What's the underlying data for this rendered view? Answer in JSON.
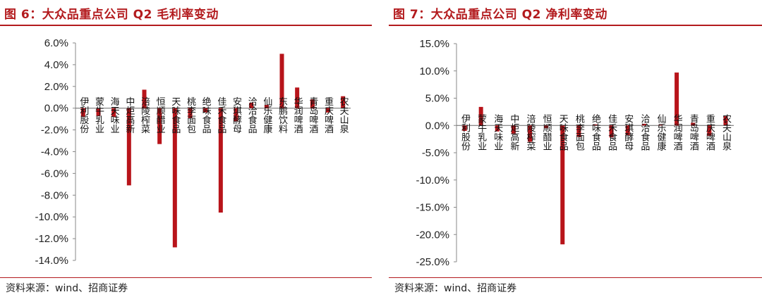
{
  "chart_data": [
    {
      "type": "bar",
      "title": "图 6：大众品重点公司 Q2 毛利率变动",
      "source": "资料来源：wind、招商证券",
      "categories": [
        "伊利股份",
        "蒙牛乳业",
        "海天味业",
        "中炬高新",
        "涪陵榨菜",
        "恒顺醋业",
        "天味食品",
        "桃李面包",
        "绝味食品",
        "佳禾食品",
        "安琪酵母",
        "洽洽食品",
        "仙乐健康",
        "东鹏饮料",
        "华润啤酒",
        "青岛啤酒",
        "重庆啤酒",
        "农夫山泉"
      ],
      "values": [
        -0.8,
        -0.7,
        -0.8,
        -7.1,
        1.7,
        -3.3,
        -12.8,
        -0.9,
        -0.4,
        -9.6,
        -1.2,
        0.5,
        0.3,
        5.0,
        1.9,
        0.8,
        -0.4,
        1.1
      ],
      "ylim": [
        -14,
        6
      ],
      "yticks": [
        6,
        4,
        2,
        0,
        -2,
        -4,
        -6,
        -8,
        -10,
        -12,
        -14
      ],
      "ytick_labels": [
        "6.0%",
        "4.0%",
        "2.0%",
        "0.0%",
        "-2.0%",
        "-4.0%",
        "-6.0%",
        "-8.0%",
        "-10.0%",
        "-12.0%",
        "-14.0%"
      ],
      "xlabel": "",
      "ylabel": "",
      "grid": false,
      "color": "#b8141a"
    },
    {
      "type": "bar",
      "title": "图 7：大众品重点公司 Q2 净利率变动",
      "source": "资料来源：wind、招商证券",
      "categories": [
        "伊利股份",
        "蒙牛乳业",
        "海天味业",
        "中炬高新",
        "涪陵榨菜",
        "恒顺醋业",
        "天味食品",
        "桃李面包",
        "绝味食品",
        "佳禾食品",
        "安琪酵母",
        "洽洽食品",
        "仙乐健康",
        "华润啤酒",
        "青岛啤酒",
        "重庆啤酒",
        "农夫山泉"
      ],
      "values": [
        -1.0,
        3.4,
        -1.1,
        -1.6,
        -3.0,
        -0.5,
        -21.8,
        -2.1,
        0.2,
        -2.2,
        -1.8,
        0.3,
        0.1,
        9.7,
        0.5,
        -1.9,
        1.7
      ],
      "ylim": [
        -25,
        15
      ],
      "yticks": [
        15,
        10,
        5,
        0,
        -5,
        -10,
        -15,
        -20,
        -25
      ],
      "ytick_labels": [
        "15.0%",
        "10.0%",
        "5.0%",
        "0.0%",
        "-5.0%",
        "-10.0%",
        "-15.0%",
        "-20.0%",
        "-25.0%"
      ],
      "xlabel": "",
      "ylabel": "",
      "grid": false,
      "color": "#b8141a"
    }
  ]
}
